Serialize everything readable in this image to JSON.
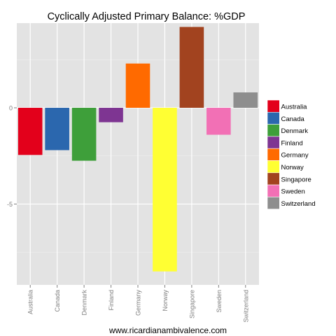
{
  "chart_data": {
    "type": "bar",
    "title": "Cyclically Adjusted Primary Balance: %GDP",
    "xlabel": "www.ricardianambivalence.com",
    "ylabel": "",
    "categories": [
      "Australia",
      "Canada",
      "Denmark",
      "Finland",
      "Germany",
      "Norway",
      "Singapore",
      "Sweden",
      "Switzerland"
    ],
    "values": [
      -2.45,
      -2.2,
      -2.75,
      -0.75,
      2.3,
      -8.5,
      4.2,
      -1.4,
      0.8
    ],
    "colors": [
      "#e3001b",
      "#2b67ae",
      "#3e9f3a",
      "#7e3592",
      "#ff6a00",
      "#ffff33",
      "#a2431f",
      "#f270b5",
      "#8e8e8e"
    ],
    "yticks": [
      -5,
      0
    ],
    "ylim": [
      -9.2,
      4.4
    ],
    "grid": true,
    "legend_position": "right"
  }
}
